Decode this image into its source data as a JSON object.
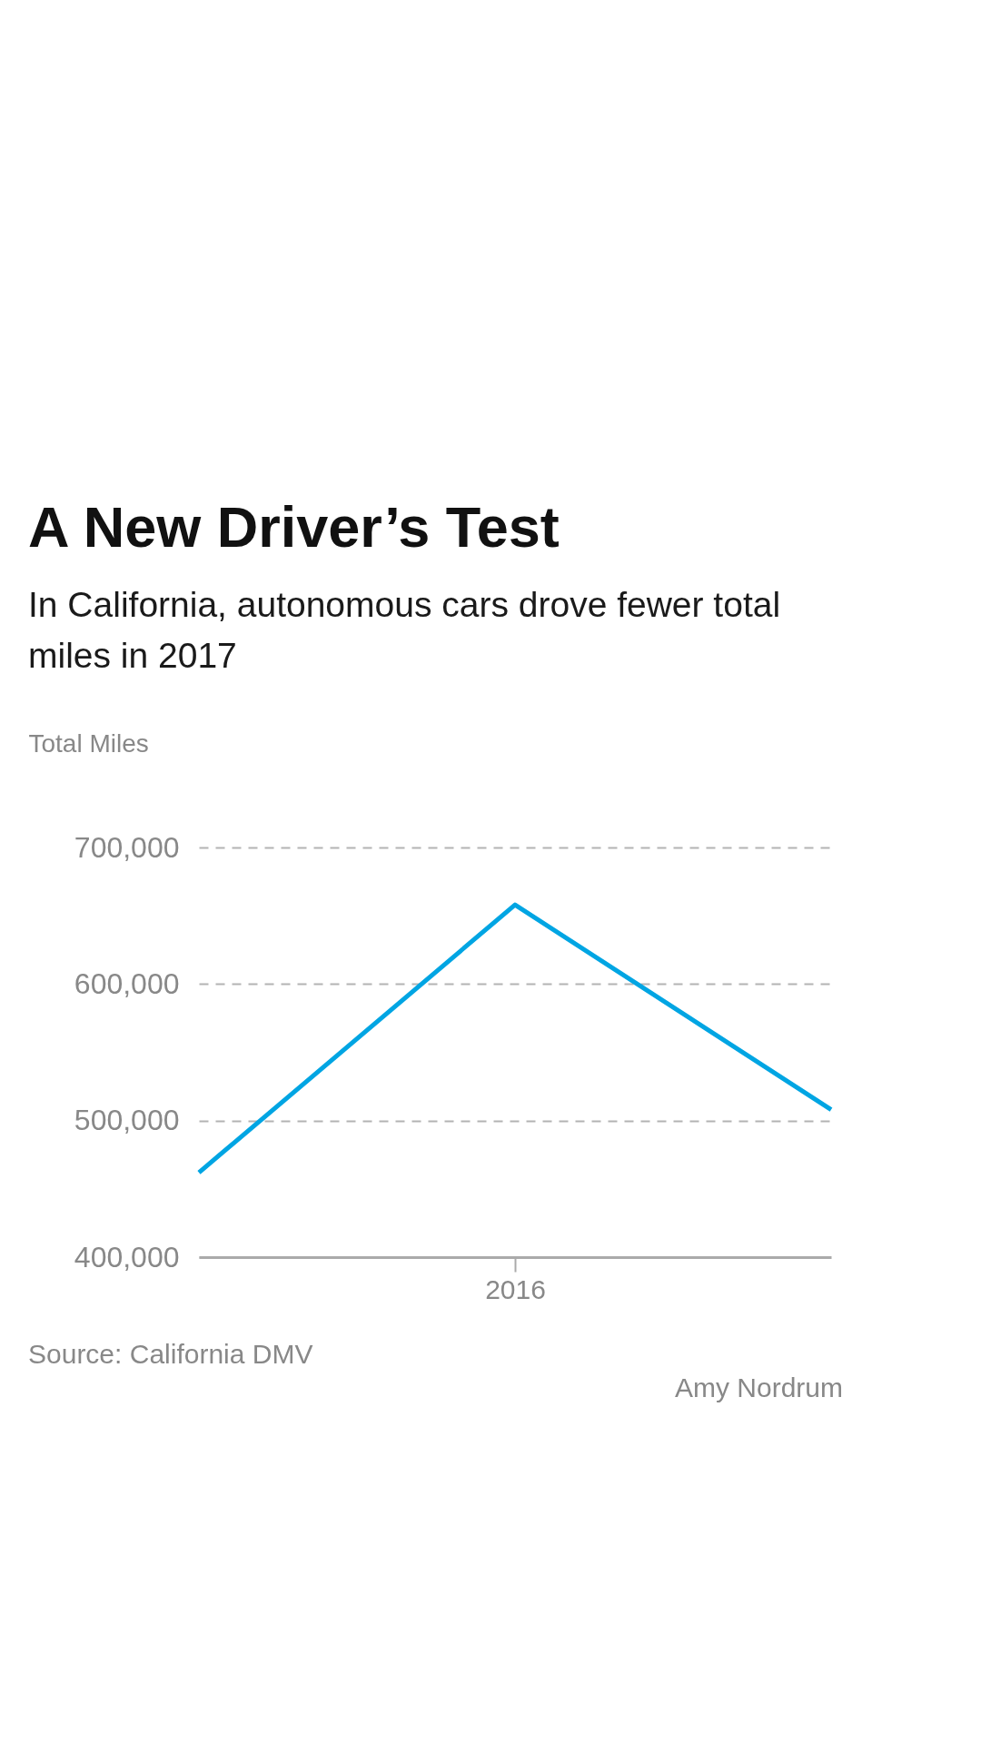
{
  "chart_data": {
    "type": "line",
    "title": "A New Driver’s Test",
    "subtitle": "In California, autonomous cars drove fewer total miles in 2017",
    "ylabel": "Total Miles",
    "categories": [
      null,
      "2016",
      null
    ],
    "series": [
      {
        "color": "#00a5e3",
        "values": [
          462000,
          658000,
          508000
        ]
      }
    ],
    "ylim": [
      400000,
      700000
    ],
    "yticks": [
      {
        "value": 400000,
        "label": "400,000"
      },
      {
        "value": 500000,
        "label": "500,000"
      },
      {
        "value": 600000,
        "label": "600,000"
      },
      {
        "value": 700000,
        "label": "700,000"
      }
    ],
    "grid": "y",
    "line_style": "solid",
    "annotations": [
      "Source: California DMV",
      "Amy Nordrum"
    ]
  }
}
